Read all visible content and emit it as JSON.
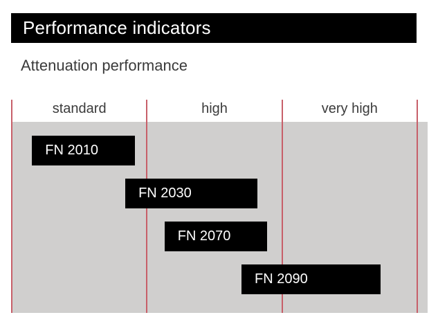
{
  "header": {
    "title": "Performance indicators"
  },
  "section": {
    "subtitle": "Attenuation performance"
  },
  "colors": {
    "header_bg": "#000000",
    "header_text": "#ffffff",
    "subtitle_text": "#3a3a3a",
    "column_label_text": "#3b3b3b",
    "chart_bg": "#d0cfce",
    "separator_line": "#c75f69",
    "bar_fill": "#000000",
    "bar_text": "#ffffff"
  },
  "chart_data": {
    "type": "bar",
    "variant": "horizontal-range",
    "title": "Attenuation performance",
    "categories": [
      "standard",
      "high",
      "very high"
    ],
    "axis_range": [
      0,
      3
    ],
    "grid": "vertical red separator lines at category boundaries",
    "legend": "none",
    "bars": [
      {
        "label": "FN 2010",
        "start": 0.15,
        "end": 0.91,
        "spans": [
          "standard"
        ]
      },
      {
        "label": "FN 2030",
        "start": 0.84,
        "end": 1.82,
        "spans": [
          "standard",
          "high"
        ]
      },
      {
        "label": "FN 2070",
        "start": 1.13,
        "end": 1.89,
        "spans": [
          "high"
        ]
      },
      {
        "label": "FN 2090",
        "start": 1.7,
        "end": 2.73,
        "spans": [
          "high",
          "very high"
        ]
      }
    ]
  }
}
